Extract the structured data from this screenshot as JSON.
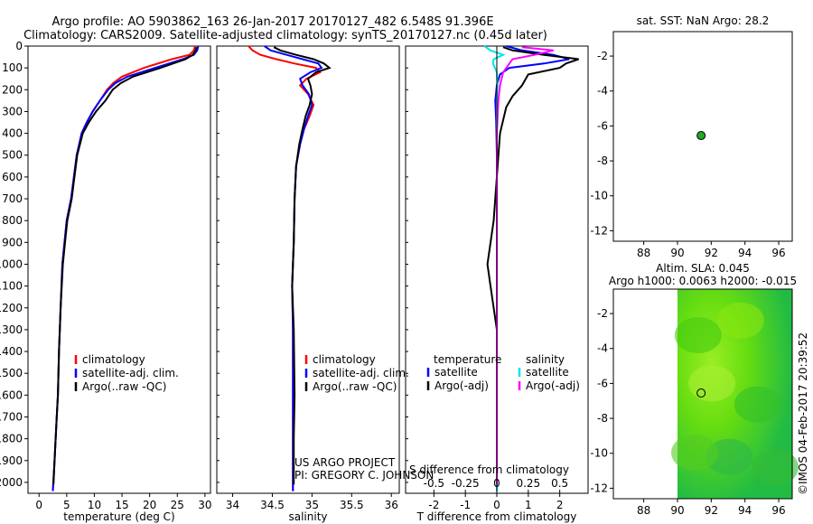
{
  "header": {
    "line1": "Argo profile: AO 5903862_163 26-Jan-2017 20170127_482 6.548S 91.396E",
    "line2": "Climatology: CARS2009. Satellite-adjusted climatology: synTS_20170127.nc (0.45d later)"
  },
  "colors": {
    "climatology": "#ff0000",
    "satellite": "#0000ff",
    "argo": "#000000",
    "sal_satellite": "#00e5ee",
    "sal_argo": "#ff00ff",
    "marker": "#22aa22",
    "map_bg": "#55dd00"
  },
  "footer": {
    "project": "US ARGO PROJECT",
    "pi": "PI: GREGORY C. JOHNSON",
    "timestamp": "©IMOS 04-Feb-2017 20:39:52"
  },
  "chart_data": [
    {
      "id": "temperature",
      "type": "line",
      "xlabel": "temperature (deg C)",
      "ylabel": "",
      "xlim": [
        -2,
        31
      ],
      "ylim": [
        2050,
        0
      ],
      "xticks": [
        "0",
        "5",
        "10",
        "15",
        "20",
        "25",
        "30"
      ],
      "xtick_values": [
        0,
        5,
        10,
        15,
        20,
        25,
        30
      ],
      "yticks": [
        "0",
        "100",
        "200",
        "300",
        "400",
        "500",
        "600",
        "700",
        "800",
        "900",
        "1000",
        "1100",
        "1200",
        "1300",
        "1400",
        "1500",
        "1600",
        "1700",
        "1800",
        "1900",
        "2000"
      ],
      "ytick_values": [
        0,
        100,
        200,
        300,
        400,
        500,
        600,
        700,
        800,
        900,
        1000,
        1100,
        1200,
        1300,
        1400,
        1500,
        1600,
        1700,
        1800,
        1900,
        2000
      ],
      "legend": [
        "climatology",
        "satellite-adj. clim.",
        "Argo(..raw -QC)"
      ],
      "series": [
        {
          "name": "climatology",
          "color": "#ff0000",
          "x": [
            28.2,
            28.0,
            27.2,
            24.0,
            19.0,
            15.0,
            13.4,
            12.3,
            11.0,
            9.7,
            8.7,
            7.7,
            6.8,
            6.3,
            5.8,
            5.0,
            4.6,
            4.2,
            3.9,
            3.6,
            3.4,
            3.2,
            3.0,
            2.8,
            2.5
          ],
          "y": [
            0,
            20,
            40,
            60,
            100,
            140,
            170,
            200,
            250,
            300,
            350,
            400,
            500,
            600,
            700,
            800,
            900,
            1000,
            1200,
            1400,
            1600,
            1700,
            1800,
            1900,
            2040
          ]
        },
        {
          "name": "satellite-adj. clim.",
          "color": "#0000ff",
          "x": [
            28.8,
            28.6,
            28.0,
            26.0,
            21.0,
            16.0,
            13.8,
            12.5,
            11.0,
            9.7,
            8.6,
            7.7,
            6.8,
            6.3,
            5.8,
            5.0,
            4.6,
            4.2,
            3.9,
            3.6,
            3.4,
            3.2,
            3.0,
            2.8,
            2.5
          ],
          "y": [
            0,
            20,
            40,
            60,
            100,
            140,
            170,
            200,
            250,
            300,
            350,
            400,
            500,
            600,
            700,
            800,
            900,
            1000,
            1200,
            1400,
            1600,
            1700,
            1800,
            1900,
            2040
          ]
        },
        {
          "name": "Argo(..raw -QC)",
          "color": "#000000",
          "x": [
            28.5,
            28.3,
            27.8,
            26.5,
            22.0,
            17.0,
            14.8,
            13.3,
            12.0,
            10.3,
            9.0,
            7.9,
            6.9,
            6.4,
            5.9,
            5.1,
            4.7,
            4.3,
            3.9,
            3.6,
            3.4,
            3.2,
            3.0,
            2.8,
            2.6
          ],
          "y": [
            5,
            20,
            40,
            60,
            100,
            140,
            170,
            200,
            250,
            300,
            350,
            400,
            500,
            600,
            700,
            800,
            900,
            1000,
            1200,
            1400,
            1600,
            1700,
            1800,
            1900,
            2010
          ]
        }
      ]
    },
    {
      "id": "salinity",
      "type": "line",
      "xlabel": "salinity",
      "xlim": [
        33.8,
        36.1
      ],
      "ylim": [
        2050,
        0
      ],
      "xticks": [
        "34",
        "34.5",
        "35",
        "35.5",
        "36"
      ],
      "xtick_values": [
        34,
        34.5,
        35,
        35.5,
        36
      ],
      "legend": [
        "climatology",
        "satellite-adj. clim.",
        "Argo(..raw -QC)"
      ],
      "series": [
        {
          "name": "climatology",
          "color": "#ff0000",
          "x": [
            34.2,
            34.25,
            34.35,
            34.55,
            34.78,
            35.05,
            35.1,
            34.93,
            34.85,
            34.95,
            35.02,
            34.97,
            34.9,
            34.85,
            34.8,
            34.78,
            34.77,
            34.75,
            34.76,
            34.76,
            34.76,
            34.76
          ],
          "y": [
            0,
            20,
            40,
            60,
            80,
            100,
            120,
            150,
            180,
            220,
            270,
            320,
            380,
            450,
            550,
            700,
            900,
            1100,
            1300,
            1600,
            1800,
            2040
          ]
        },
        {
          "name": "satellite-adj. clim.",
          "color": "#0000ff",
          "x": [
            34.4,
            34.48,
            34.68,
            34.88,
            35.08,
            35.12,
            34.98,
            34.85,
            34.88,
            34.96,
            35.0,
            34.95,
            34.9,
            34.85,
            34.8,
            34.78,
            34.77,
            34.75,
            34.76,
            34.76,
            34.76,
            34.76
          ],
          "y": [
            0,
            20,
            40,
            60,
            80,
            100,
            120,
            150,
            180,
            220,
            270,
            320,
            380,
            450,
            550,
            700,
            900,
            1100,
            1300,
            1600,
            1800,
            2040
          ]
        },
        {
          "name": "Argo(..raw -QC)",
          "color": "#000000",
          "x": [
            34.52,
            34.6,
            34.8,
            35.02,
            35.15,
            35.22,
            35.05,
            34.95,
            34.98,
            35.0,
            34.97,
            34.92,
            34.88,
            34.84,
            34.8,
            34.78,
            34.77,
            34.75,
            34.77,
            34.78,
            34.77,
            34.77
          ],
          "y": [
            5,
            20,
            40,
            60,
            80,
            100,
            120,
            150,
            180,
            220,
            270,
            320,
            380,
            450,
            550,
            700,
            900,
            1100,
            1300,
            1600,
            1800,
            2010
          ]
        }
      ]
    },
    {
      "id": "differences",
      "type": "line",
      "xlabel": "T difference from climatology",
      "xlabel_top": "S difference from climatology",
      "xlim": [
        -2.9,
        2.9
      ],
      "ylim": [
        2050,
        0
      ],
      "xticks": [
        "-2",
        "-1",
        "0",
        "1",
        "2"
      ],
      "xtick_values": [
        -2,
        -1,
        0,
        1,
        2
      ],
      "sticks": [
        "-0.5",
        "-0.25",
        "0",
        "0.25",
        "0.5"
      ],
      "stick_values": [
        -0.5,
        -0.25,
        0,
        0.25,
        0.5
      ],
      "legend_titles": [
        "temperature",
        "salinity"
      ],
      "legend_temp": [
        "satellite",
        "Argo(-adj)"
      ],
      "legend_sal": [
        "satellite",
        "Argo(-adj)"
      ],
      "series": [
        {
          "name": "T satellite",
          "color": "#0000ff",
          "x": [
            0.3,
            0.8,
            1.8,
            2.3,
            1.5,
            0.4,
            0.1,
            0.0,
            -0.05,
            -0.02,
            0.0,
            0.0,
            0.0,
            0.0,
            0.0,
            0.0,
            0.0
          ],
          "y": [
            0,
            20,
            40,
            60,
            80,
            100,
            130,
            180,
            250,
            350,
            500,
            700,
            900,
            1100,
            1400,
            1800,
            2040
          ]
        },
        {
          "name": "T Argo(-adj)",
          "color": "#000000",
          "x": [
            0.2,
            0.5,
            1.5,
            2.6,
            2.2,
            2.0,
            1.0,
            0.8,
            0.5,
            0.3,
            0.1,
            0.0,
            -0.1,
            -0.3,
            -0.2,
            0.0,
            0.0,
            0.0
          ],
          "y": [
            5,
            20,
            40,
            60,
            80,
            100,
            130,
            180,
            230,
            280,
            400,
            600,
            800,
            1000,
            1100,
            1300,
            1700,
            2010
          ]
        },
        {
          "name": "S satellite",
          "color": "#00e5ee",
          "x": [
            -0.4,
            -0.2,
            0.2,
            -0.1,
            -0.12,
            0.0,
            0.02,
            0.0,
            0.0,
            0.0,
            0.0,
            0.0,
            0.0
          ],
          "y": [
            0,
            20,
            40,
            60,
            80,
            120,
            180,
            250,
            400,
            700,
            1000,
            1500,
            2040
          ]
        },
        {
          "name": "S Argo(-adj)",
          "color": "#ff00ff",
          "x": [
            0.8,
            1.8,
            1.2,
            0.5,
            0.4,
            0.2,
            0.1,
            0.05,
            0.0,
            0.0,
            0.0,
            0.0,
            0.0
          ],
          "y": [
            5,
            20,
            40,
            60,
            80,
            120,
            180,
            250,
            400,
            700,
            1000,
            1500,
            2010
          ]
        }
      ]
    },
    {
      "id": "sst_map",
      "type": "scatter",
      "title": "sat. SST: NaN Argo: 28.2",
      "xlim": [
        86.2,
        96.8
      ],
      "ylim": [
        -12.6,
        -0.6
      ],
      "xticks": [
        "88",
        "90",
        "92",
        "94",
        "96"
      ],
      "xtick_values": [
        88,
        90,
        92,
        94,
        96
      ],
      "yticks": [
        "-2",
        "-4",
        "-6",
        "-8",
        "-10",
        "-12"
      ],
      "ytick_values": [
        -2,
        -4,
        -6,
        -8,
        -10,
        -12
      ],
      "points": [
        {
          "lon": 91.4,
          "lat": -6.55
        }
      ]
    },
    {
      "id": "sla_map",
      "type": "heatmap",
      "title": "Altim. SLA: 0.045",
      "subtitle": "Argo h1000: 0.0063 h2000: -0.015",
      "xlim": [
        86.2,
        96.8
      ],
      "ylim": [
        -12.6,
        -0.6
      ],
      "xticks": [
        "88",
        "90",
        "92",
        "94",
        "96"
      ],
      "xtick_values": [
        88,
        90,
        92,
        94,
        96
      ],
      "yticks": [
        "-2",
        "-4",
        "-6",
        "-8",
        "-10",
        "-12"
      ],
      "ytick_values": [
        -2,
        -4,
        -6,
        -8,
        -10,
        -12
      ],
      "data_lon_range": [
        90.0,
        96.8
      ],
      "points": [
        {
          "lon": 91.4,
          "lat": -6.55
        }
      ]
    }
  ]
}
